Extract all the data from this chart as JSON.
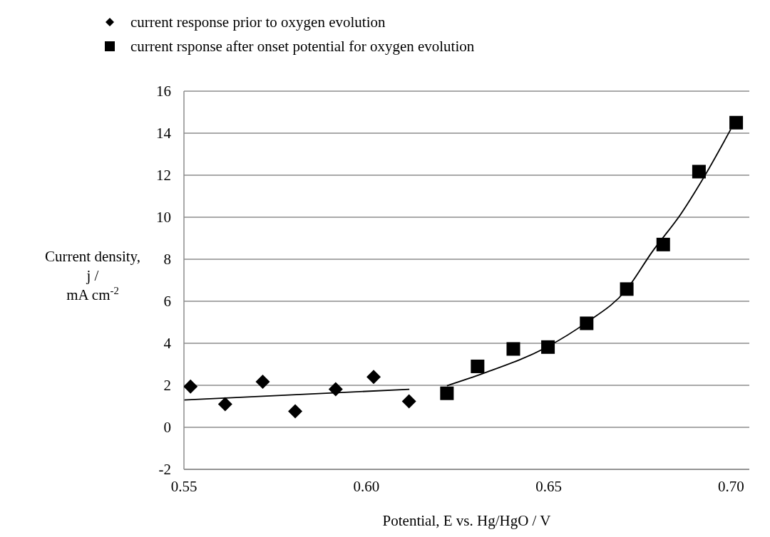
{
  "chart_data": {
    "type": "scatter",
    "xlabel": "Potential, E vs. Hg/HgO / V",
    "ylabel": "Current density,\nj /\nmA cm$^{-2}$",
    "xlim": [
      0.55,
      0.705
    ],
    "xticks": [
      {
        "value": 0.55,
        "label": "0.55"
      },
      {
        "value": 0.6,
        "label": "0.60"
      },
      {
        "value": 0.65,
        "label": "0.65"
      },
      {
        "value": 0.7,
        "label": "0.70"
      }
    ],
    "ylim": [
      -2,
      16
    ],
    "yticks": [
      -2,
      0,
      2,
      4,
      6,
      8,
      10,
      12,
      14,
      16
    ],
    "grid": "y",
    "legend": "top left",
    "series": [
      {
        "name": "current response prior to oxygen evolution",
        "color": "#000000",
        "marker": "diamond",
        "x": [
          0.5518,
          0.5613,
          0.5716,
          0.5805,
          0.5916,
          0.602,
          0.6117
        ],
        "values": [
          1.94,
          1.1,
          2.17,
          0.76,
          1.81,
          2.4,
          1.24
        ]
      },
      {
        "name": "current rsponse after onset potential for oxygen evolution",
        "color": "#000000",
        "marker": "square",
        "x": [
          0.6221,
          0.6305,
          0.6403,
          0.6498,
          0.6604,
          0.6714,
          0.6814,
          0.6912,
          0.7014
        ],
        "values": [
          1.62,
          2.9,
          3.73,
          3.82,
          4.95,
          6.58,
          8.7,
          12.17,
          14.5
        ]
      },
      {
        "type": "line",
        "color": "#000000",
        "marker": "none",
        "x": [
          0.55,
          0.6118
        ],
        "values": [
          1.3,
          1.81
        ]
      },
      {
        "type": "line",
        "color": "#000000",
        "marker": "none",
        "x": [
          0.6221,
          0.6321,
          0.6497,
          0.6602,
          0.6713,
          0.6784,
          0.6863,
          0.6928,
          0.6999
        ],
        "values": [
          1.98,
          2.57,
          3.84,
          4.97,
          6.55,
          8.36,
          10.17,
          11.98,
          14.18
        ]
      }
    ]
  }
}
